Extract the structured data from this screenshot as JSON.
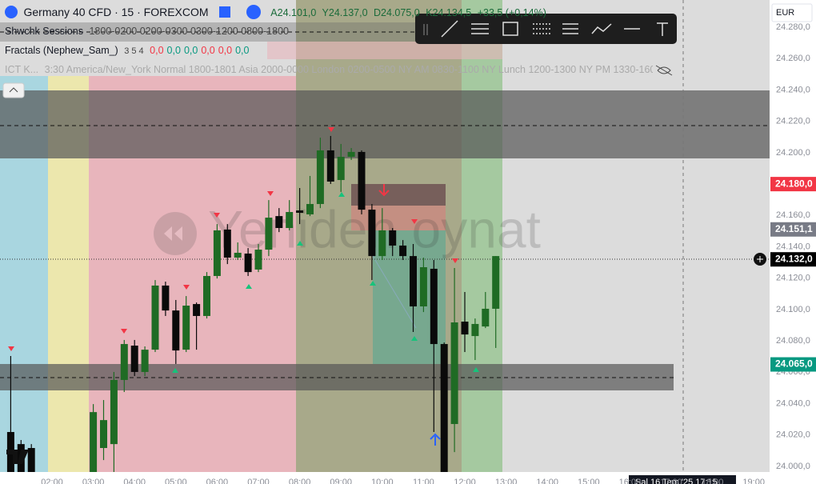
{
  "header": {
    "symbol": "Germany 40 CFD · 15 · FOREXCOM",
    "ohlc": [
      "A24.101,0",
      "Y24.137,0",
      "D24.075,0",
      "K24.134,5"
    ],
    "change": "+33,5 (+0,14%)"
  },
  "indicators": [
    {
      "name": "Shwchk Sessions",
      "params": "1800-0200 0200-0300 0300-1200 0800-1800"
    },
    {
      "name": "Fractals (Nephew_Sam_)",
      "params": "3 5 4",
      "values": [
        "0,0",
        "0,0",
        "0,0",
        "0,0",
        "0,0",
        "0,0"
      ],
      "value_colors": [
        "#f23645",
        "#089981",
        "#089981",
        "#f23645",
        "#f23645",
        "#089981"
      ]
    },
    {
      "name": "ICT K...",
      "params": "3:30 America/New_York Normal 1800-1801 Asia 2000-0000 London 0200-0500 NY AM 0830-1100 NY Lunch 1200-1300 NY PM 1330-160"
    }
  ],
  "currency": "EUR",
  "watermark": "Yeniden oynat",
  "crosshair_time": "Sal 16 Tem '25 17:15",
  "chart_data": {
    "type": "candlestick",
    "up_color": "#1f6b24",
    "down_color": "#0a0a0a",
    "categories": [
      null,
      null,
      null,
      null,
      "02:00",
      null,
      null,
      null,
      "03:00",
      null,
      null,
      null,
      "04:00",
      null,
      null,
      null,
      "05:00",
      null,
      null,
      null,
      "06:00",
      null,
      null,
      null,
      "07:00",
      null,
      null,
      null,
      "08:00",
      null,
      null,
      null,
      "09:00",
      null,
      null,
      null,
      "10:00",
      null,
      null,
      null,
      "11:00",
      null,
      null,
      null,
      "12:00",
      null,
      null,
      null,
      "13:00",
      null,
      null,
      null,
      "14:00",
      null,
      null,
      null,
      "15:00",
      null,
      null,
      null,
      "16:00",
      null,
      null,
      null,
      "17:00",
      null,
      null,
      null,
      "18:00",
      null,
      null,
      null,
      "19:00"
    ],
    "open": [
      24021.9,
      24014.2,
      24011.7,
      null,
      null,
      null,
      null,
      null,
      23996.4,
      24011.7,
      24014.2,
      24055.1,
      24077.0,
      24060.2,
      24074.4,
      24115.3,
      24099.4,
      24074.4,
      24103.5,
      24095.9,
      24121.4,
      24151.0,
      24133.1,
      24135.7,
      24125.5,
      24138.2,
      24159.6,
      24152.0,
      24163.2,
      24160.7,
      24167.3,
      24201.5,
      24182.6,
      24197.4,
      24200.5,
      24163.7,
      24134.1,
      24150.5,
      24140.8,
      24134.1,
      24102.0,
      24126.0,
      24078.0,
      24027.0,
      24092.3,
      24083.1,
      24089.2,
      24100.5,
      null,
      null,
      null,
      null,
      null,
      null,
      null,
      null,
      null,
      null,
      null,
      null,
      null,
      null,
      null,
      null,
      null,
      null,
      null,
      null,
      null,
      null,
      null,
      null,
      null
    ],
    "high": [
      24070.4,
      24016.8,
      24014.2,
      null,
      null,
      null,
      null,
      null,
      24039.7,
      24042.3,
      24060.2,
      24080.6,
      24080.6,
      24076.5,
      24118.8,
      24117.8,
      24106.1,
      24108.6,
      24104.5,
      24123.9,
      24154.5,
      24154.5,
      24142.8,
      24139.2,
      24141.8,
      24169.8,
      24164.7,
      24169.8,
      24177.5,
      24185.2,
      24209.6,
      24210.7,
      24205.6,
      24203.0,
      24201.5,
      24167.3,
      24164.7,
      24152.0,
      24144.3,
      24141.8,
      24133.1,
      24131.6,
      24079.0,
      24126.5,
      24111.2,
      24094.3,
      24111.2,
      24134.1,
      null,
      null,
      null,
      null,
      null,
      null,
      null,
      null,
      null,
      null,
      null,
      null,
      null,
      null,
      null,
      null,
      null,
      null,
      null,
      null,
      null,
      null,
      null,
      null,
      null
    ],
    "low": [
      23991.3,
      23991.3,
      23991.3,
      null,
      null,
      null,
      null,
      null,
      23991.3,
      24004.0,
      23996.4,
      24047.4,
      24057.6,
      24057.6,
      24072.9,
      24095.9,
      24065.3,
      24072.9,
      24074.4,
      24094.3,
      24119.8,
      24129.0,
      24131.6,
      24121.4,
      24123.9,
      24134.1,
      24149.4,
      24150.5,
      24154.5,
      24159.6,
      24164.7,
      24180.1,
      24175.0,
      24195.4,
      24160.7,
      24118.8,
      24131.6,
      24134.1,
      24131.6,
      24085.7,
      24098.4,
      24021.9,
      23993.8,
      24009.1,
      24072.9,
      24067.8,
      24088.2,
      24075.5,
      null,
      null,
      null,
      null,
      null,
      null,
      null,
      null,
      null,
      null,
      null,
      null,
      null,
      null,
      null,
      null,
      null,
      null,
      null,
      null,
      null,
      null,
      null,
      null,
      null
    ],
    "close": [
      23996.4,
      23996.4,
      23996.4,
      null,
      null,
      null,
      null,
      null,
      24034.6,
      24029.5,
      24055.1,
      24078.0,
      24060.2,
      24074.4,
      24115.3,
      24099.4,
      24073.9,
      24102.5,
      24095.9,
      24121.4,
      24150.5,
      24133.1,
      24136.2,
      24123.9,
      24138.2,
      24158.6,
      24152.0,
      24162.2,
      24161.7,
      24167.3,
      24201.5,
      24181.6,
      24197.4,
      24200.5,
      24163.7,
      24134.1,
      24150.5,
      24140.8,
      24134.1,
      24102.0,
      24127.0,
      24078.0,
      23996.4,
      24091.8,
      24084.1,
      24090.8,
      24100.5,
      24134.1,
      null,
      null,
      null,
      null,
      null,
      null,
      null,
      null,
      null,
      null,
      null,
      null,
      null,
      null,
      null,
      null,
      null,
      null,
      null,
      null,
      null,
      null,
      null,
      null,
      null
    ],
    "ylim": [
      23996.4,
      24297.4
    ],
    "yticks": [
      {
        "value": 24000,
        "label": "24.000,0"
      },
      {
        "value": 24020,
        "label": "24.020,0"
      },
      {
        "value": 24040,
        "label": "24.040,0"
      },
      {
        "value": 24060,
        "label": "24.060,0"
      },
      {
        "value": 24080,
        "label": "24.080,0"
      },
      {
        "value": 24100,
        "label": "24.100,0"
      },
      {
        "value": 24120,
        "label": "24.120,0"
      },
      {
        "value": 24140,
        "label": "24.140,0"
      },
      {
        "value": 24160,
        "label": "24.160,0"
      },
      {
        "value": 24180,
        "label": "24.180,0"
      },
      {
        "value": 24200,
        "label": "24.200,0"
      },
      {
        "value": 24220,
        "label": "24.220,0"
      },
      {
        "value": 24240,
        "label": "24.240,0"
      },
      {
        "value": 24260,
        "label": "24.260,0"
      },
      {
        "value": 24280,
        "label": "24.280,0"
      }
    ],
    "price_labels": [
      {
        "value": 24180,
        "label": "24.180,0",
        "color": "#f23645"
      },
      {
        "value": 24151.1,
        "label": "24.151,1",
        "color": "#787b86"
      },
      {
        "value": 24132,
        "label": "24.132,0",
        "color": "#000000"
      },
      {
        "value": 24065,
        "label": "24.065,0",
        "color": "#089981"
      }
    ]
  }
}
